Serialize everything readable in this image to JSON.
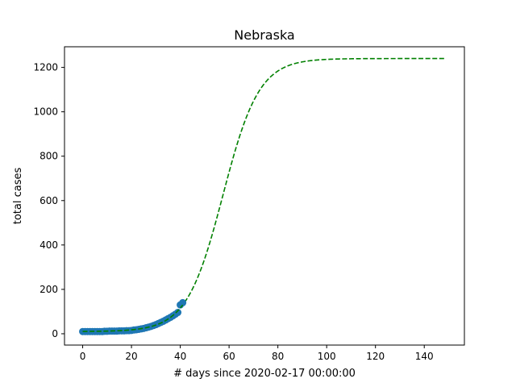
{
  "chart_data": {
    "type": "line",
    "title": "Nebraska",
    "xlabel": "# days since 2020-02-17 00:00:00",
    "ylabel": "total cases",
    "xlim": [
      -7.45,
      156.45
    ],
    "ylim": [
      -51,
      1293
    ],
    "xticks": [
      0,
      20,
      40,
      60,
      80,
      100,
      120,
      140
    ],
    "xtick_labels": [
      "0",
      "20",
      "40",
      "60",
      "80",
      "100",
      "120",
      "140"
    ],
    "yticks": [
      0,
      200,
      400,
      600,
      800,
      1000,
      1200
    ],
    "ytick_labels": [
      "0",
      "200",
      "400",
      "600",
      "800",
      "1000",
      "1200"
    ],
    "grid": false,
    "series": [
      {
        "kind": "scatter",
        "color": "#1f77b4",
        "x": [
          0,
          1,
          2,
          3,
          4,
          5,
          6,
          7,
          8,
          9,
          10,
          11,
          12,
          13,
          14,
          15,
          16,
          17,
          18,
          19,
          20,
          21,
          22,
          23,
          24,
          25,
          26,
          27,
          28,
          29,
          30,
          31,
          32,
          33,
          34,
          35,
          36,
          37,
          38,
          39,
          40,
          41
        ],
        "y": [
          10,
          10,
          10,
          10,
          10,
          10,
          10,
          10,
          10,
          11,
          11,
          12,
          12,
          12,
          12,
          13,
          13,
          13,
          14,
          14,
          15,
          17,
          18,
          20,
          22,
          24,
          27,
          30,
          33,
          37,
          41,
          46,
          51,
          56,
          62,
          68,
          74,
          81,
          88,
          96,
          130,
          140
        ]
      },
      {
        "kind": "fit",
        "color": "#008000",
        "style": "dashed",
        "model": {
          "L": 1230,
          "k": 0.135,
          "x0": 57.5,
          "offset": 10
        },
        "x_range": [
          0,
          149
        ]
      }
    ]
  }
}
